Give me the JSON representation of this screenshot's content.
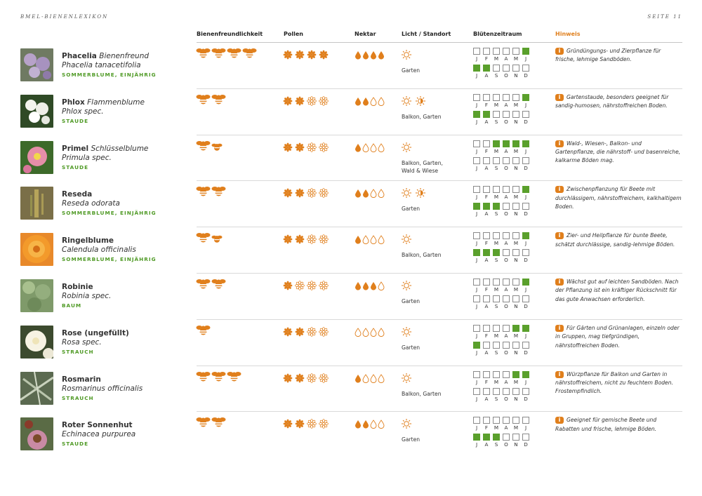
{
  "header": {
    "left": "BMEL-BIENENLEXIKON",
    "right": "SEITE 11"
  },
  "columns": {
    "bees": "Bienenfreundlichkeit",
    "pollen": "Pollen",
    "nectar": "Nektar",
    "light": "Licht / Standort",
    "bloom": "Blütenzeitraum",
    "note": "Hinweis"
  },
  "month_letters_1": [
    "J",
    "F",
    "M",
    "A",
    "M",
    "J"
  ],
  "month_letters_2": [
    "J",
    "A",
    "S",
    "O",
    "N",
    "D"
  ],
  "colors": {
    "orange": "#e07f1c",
    "green": "#5aa02c",
    "type_green": "#4f9a25"
  },
  "plants": [
    {
      "name": "Phacelia",
      "common": "Bienenfreund",
      "scientific": "Phacelia tanacetifolia",
      "type": "SOMMERBLUME, EINJÄHRIG",
      "thumb": "phacelia-photo",
      "bees": [
        4,
        0
      ],
      "pollen": 4,
      "nectar": 4,
      "sun_icons": "sun",
      "location": "Garten",
      "bloom_1": [
        0,
        0,
        0,
        0,
        0,
        1
      ],
      "bloom_2": [
        1,
        1,
        0,
        0,
        0,
        0
      ],
      "note": "Gründüngungs- und Zierpflanze für frische, lehmige Sandböden."
    },
    {
      "name": "Phlox",
      "common": "Flammenblume",
      "scientific": "Phlox spec.",
      "type": "STAUDE",
      "thumb": "phlox-photo",
      "bees": [
        2,
        0
      ],
      "pollen": 2,
      "nectar": 2,
      "sun_icons": "sun+halfsun",
      "location": "Balkon, Garten",
      "bloom_1": [
        0,
        0,
        0,
        0,
        0,
        1
      ],
      "bloom_2": [
        1,
        1,
        0,
        0,
        0,
        0
      ],
      "note": "Gartenstaude, besonders geeignet für sandig-humosen, nährstoffreichen Boden."
    },
    {
      "name": "Primel",
      "common": "Schlüsselblume",
      "scientific": "Primula spec.",
      "type": "STAUDE",
      "thumb": "primel-photo",
      "bees": [
        1,
        1
      ],
      "pollen": 2,
      "nectar": 1,
      "sun_icons": "sun",
      "location": "Balkon, Garten, Wald & Wiese",
      "bloom_1": [
        0,
        0,
        1,
        1,
        1,
        1
      ],
      "bloom_2": [
        0,
        0,
        0,
        0,
        0,
        0
      ],
      "note": "Wald-, Wiesen-, Balkon- und Gartenpflanze, die nährstoff- und basenreiche, kalkarme Böden mag."
    },
    {
      "name": "Reseda",
      "common": "",
      "scientific": "Reseda odorata",
      "type": "SOMMERBLUME, EINJÄHRIG",
      "thumb": "reseda-photo",
      "bees": [
        2,
        0
      ],
      "pollen": 2,
      "nectar": 2,
      "sun_icons": "sun+halfsun",
      "location": "Garten",
      "bloom_1": [
        0,
        0,
        0,
        0,
        0,
        1
      ],
      "bloom_2": [
        1,
        1,
        1,
        0,
        0,
        0
      ],
      "note": "Zwischenpflanzung für Beete mit durchlässigem, nährstoffreichem, kalkhaltigem Boden."
    },
    {
      "name": "Ringelblume",
      "common": "",
      "scientific": "Calendula officinalis",
      "type": "SOMMERBLUME, EINJÄHRIG",
      "thumb": "ringelblume-photo",
      "bees": [
        1,
        1
      ],
      "pollen": 2,
      "nectar": 1,
      "sun_icons": "sun",
      "location": "Balkon, Garten",
      "bloom_1": [
        0,
        0,
        0,
        0,
        0,
        1
      ],
      "bloom_2": [
        1,
        1,
        1,
        0,
        0,
        0
      ],
      "note": "Zier- und Heilpflanze für bunte Beete, schätzt durchlässige, sandig-lehmige Böden."
    },
    {
      "name": "Robinie",
      "common": "",
      "scientific": "Robinia spec.",
      "type": "BAUM",
      "thumb": "robinie-photo",
      "bees": [
        2,
        0
      ],
      "pollen": 1,
      "nectar": 3,
      "sun_icons": "sun",
      "location": "Garten",
      "bloom_1": [
        0,
        0,
        0,
        0,
        0,
        1
      ],
      "bloom_2": [
        0,
        0,
        0,
        0,
        0,
        0
      ],
      "note": "Wächst gut auf leichten Sandböden. Nach der Pflanzung ist ein kräftiger Rückschnitt für das gute Anwachsen erforderlich."
    },
    {
      "name": "Rose (ungefüllt)",
      "common": "",
      "scientific": "Rosa spec.",
      "type": "STRAUCH",
      "thumb": "rose-photo",
      "bees": [
        1,
        0
      ],
      "pollen": 2,
      "nectar": 0,
      "sun_icons": "sun",
      "location": "Garten",
      "bloom_1": [
        0,
        0,
        0,
        0,
        1,
        1
      ],
      "bloom_2": [
        1,
        0,
        0,
        0,
        0,
        0
      ],
      "note": "Für Gärten und Grünanlagen, einzeln oder in Gruppen, mag tiefgründigen, nährstoffreichen Boden."
    },
    {
      "name": "Rosmarin",
      "common": "",
      "scientific": "Rosmarinus officinalis",
      "type": "STRAUCH",
      "thumb": "rosmarin-photo",
      "bees": [
        3,
        0
      ],
      "pollen": 2,
      "nectar": 1,
      "sun_icons": "sun",
      "location": "Balkon, Garten",
      "bloom_1": [
        0,
        0,
        0,
        0,
        1,
        1
      ],
      "bloom_2": [
        0,
        0,
        0,
        0,
        0,
        0
      ],
      "note": "Würzpflanze für Balkon und Garten in nährstoffreichem, nicht zu feuchtem Boden. Frostempfindlich."
    },
    {
      "name": "Roter Sonnenhut",
      "common": "",
      "scientific": "Echinacea purpurea",
      "type": "STAUDE",
      "thumb": "sonnenhut-photo",
      "bees": [
        2,
        0
      ],
      "pollen": 2,
      "nectar": 2,
      "sun_icons": "sun",
      "location": "Garten",
      "bloom_1": [
        0,
        0,
        0,
        0,
        0,
        0
      ],
      "bloom_2": [
        1,
        1,
        1,
        0,
        0,
        0
      ],
      "note": "Geeignet für gemische Beete und Rabatten und frische, lehmige Böden."
    }
  ]
}
